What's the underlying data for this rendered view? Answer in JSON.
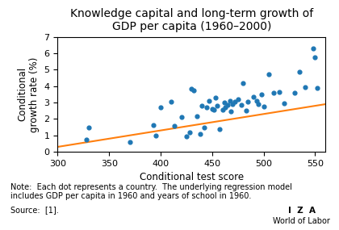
{
  "chart_data": {
    "type": "scatter",
    "title": "Knowledge capital and long-term growth of\nGDP per capita (1960–2000)",
    "xlabel": "Conditional test score",
    "ylabel": "Conditional\ngrowth rate (%)",
    "xlim": [
      300,
      560
    ],
    "ylim": [
      0,
      7
    ],
    "xticks": [
      300,
      350,
      400,
      450,
      500,
      550
    ],
    "yticks": [
      0,
      1,
      2,
      3,
      4,
      5,
      6,
      7
    ],
    "series": [
      {
        "type": "scatter",
        "x": [
          328,
          330,
          370,
          393,
          395,
          400,
          410,
          413,
          420,
          425,
          428,
          430,
          432,
          435,
          438,
          440,
          442,
          445,
          447,
          450,
          452,
          453,
          455,
          457,
          460,
          462,
          463,
          465,
          467,
          468,
          470,
          472,
          475,
          478,
          480,
          483,
          485,
          490,
          493,
          495,
          498,
          500,
          505,
          510,
          515,
          520,
          530,
          535,
          540,
          548,
          550,
          552
        ],
        "values": [
          0.75,
          1.5,
          0.6,
          1.65,
          1.0,
          2.7,
          3.05,
          1.6,
          2.1,
          0.95,
          1.2,
          3.85,
          3.75,
          2.15,
          1.1,
          2.8,
          1.5,
          2.7,
          3.1,
          2.6,
          2.55,
          3.3,
          2.8,
          1.4,
          2.55,
          3.0,
          2.7,
          2.85,
          3.1,
          2.45,
          2.9,
          3.05,
          3.2,
          2.85,
          4.2,
          2.5,
          3.05,
          3.35,
          3.1,
          2.9,
          3.5,
          2.75,
          4.7,
          3.6,
          3.65,
          2.95,
          3.6,
          4.85,
          3.95,
          6.3,
          5.75,
          3.9
        ]
      },
      {
        "type": "line",
        "x": [
          300,
          560
        ],
        "values": [
          0.3,
          2.9
        ]
      }
    ],
    "annotations": [
      "Note:  Each dot represents a country.  The underlying regression model\nincludes GDP per capita in 1960 and years of school in 1960.",
      "Source:  [1].",
      "I  Z  A",
      "World of Labor"
    ]
  }
}
